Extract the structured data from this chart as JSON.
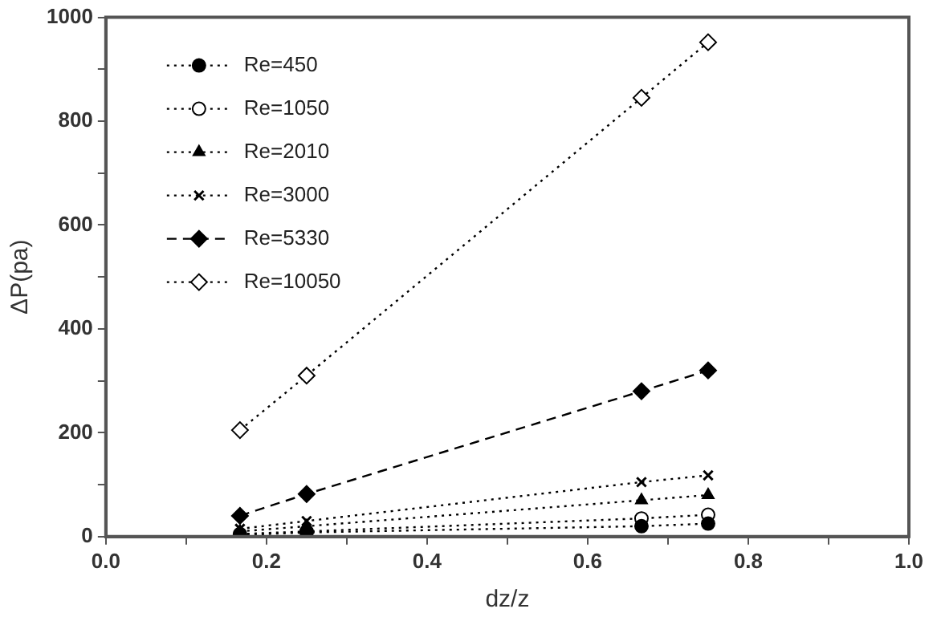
{
  "chart_data": {
    "type": "line",
    "xlabel": "dz/z",
    "ylabel": "ΔP(pa)",
    "x": [
      0.167,
      0.25,
      0.667,
      0.75
    ],
    "series": [
      {
        "name": "Re=450",
        "color": "#000000",
        "marker": "circle",
        "line_style": "dotted",
        "values": [
          3,
          8,
          20,
          25
        ]
      },
      {
        "name": "Re=1050",
        "color": "#000000",
        "marker": "circle",
        "line_style": "dotted",
        "values": [
          5,
          10,
          35,
          42
        ]
      },
      {
        "name": "Re=2010",
        "color": "#000000",
        "marker": "triangle",
        "line_style": "dotted",
        "values": [
          10,
          20,
          70,
          80
        ]
      },
      {
        "name": "Re=3000",
        "color": "#000000",
        "marker": "cross",
        "line_style": "dotted",
        "values": [
          15,
          30,
          105,
          118
        ]
      },
      {
        "name": "Re=5330",
        "color": "#000000",
        "marker": "diamond",
        "line_style": "dashed",
        "values": [
          40,
          82,
          280,
          320
        ]
      },
      {
        "name": "Re=10050",
        "color": "#000000",
        "marker": "diamond",
        "line_style": "dotted",
        "values": [
          205,
          310,
          845,
          952
        ]
      }
    ],
    "xlim": [
      0,
      1
    ],
    "xticks": [
      {
        "value": 0,
        "label": "0.0"
      },
      {
        "value": 0.1,
        "label": null
      },
      {
        "value": 0.2,
        "label": "0.2"
      },
      {
        "value": 0.3,
        "label": null
      },
      {
        "value": 0.4,
        "label": "0.4"
      },
      {
        "value": 0.5,
        "label": null
      },
      {
        "value": 0.6,
        "label": "0.6"
      },
      {
        "value": 0.7,
        "label": null
      },
      {
        "value": 0.8,
        "label": "0.8"
      },
      {
        "value": 0.9,
        "label": null
      },
      {
        "value": 1,
        "label": "1.0"
      }
    ],
    "ylim": [
      0,
      1000
    ],
    "yticks": [
      0,
      {
        "value": 100,
        "label": null
      },
      200,
      {
        "value": 300,
        "label": null
      },
      400,
      {
        "value": 500,
        "label": null
      },
      600,
      {
        "value": 700,
        "label": null
      },
      800,
      {
        "value": 900,
        "label": null
      },
      1000
    ],
    "grid": false,
    "legend": "top left"
  }
}
